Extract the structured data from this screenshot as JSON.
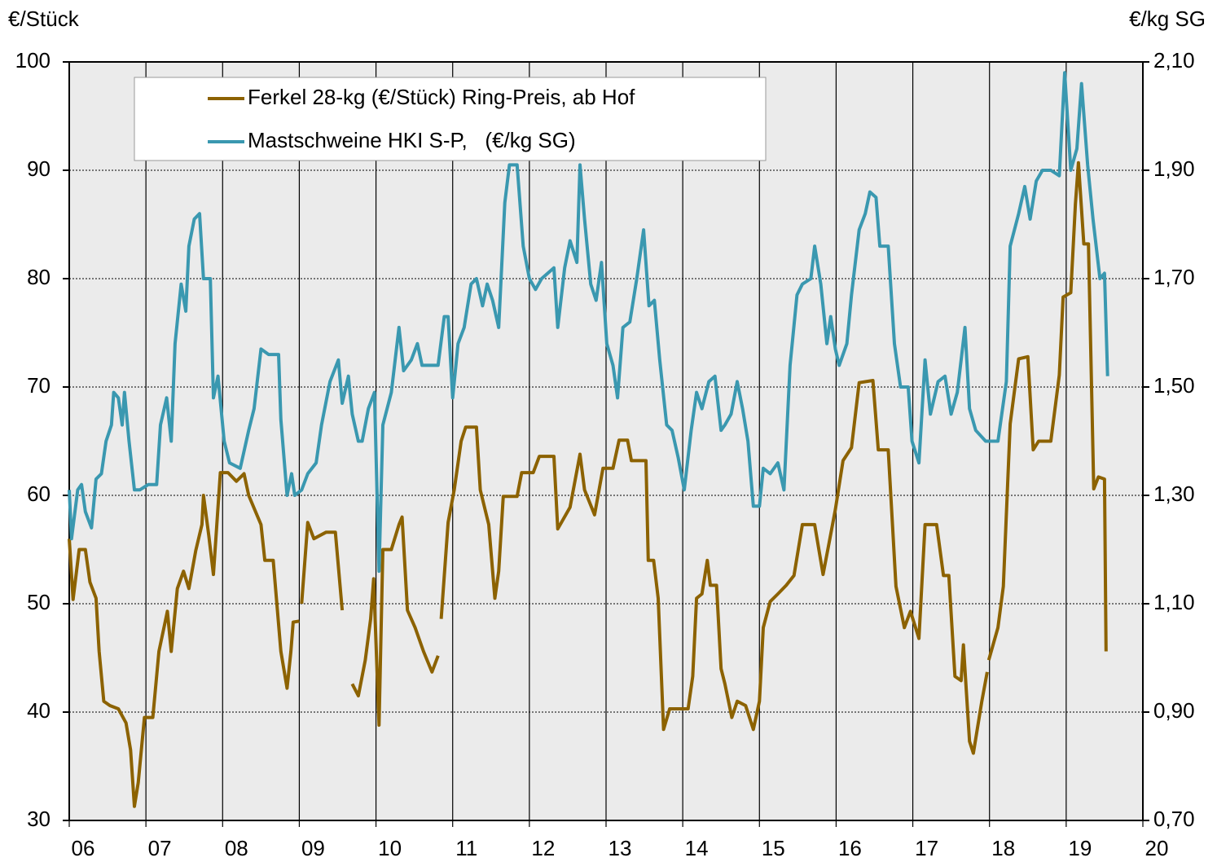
{
  "chart_data": {
    "type": "line",
    "y_label": "€/Stück",
    "y2_label": "€/kg SG",
    "grid": true,
    "legend": "top-left",
    "xlim": [
      2006,
      2020
    ],
    "xticks": [
      {
        "value": 2006,
        "label": "06"
      },
      {
        "value": 2007,
        "label": "07"
      },
      {
        "value": 2008,
        "label": "08"
      },
      {
        "value": 2009,
        "label": "09"
      },
      {
        "value": 2010,
        "label": "10"
      },
      {
        "value": 2011,
        "label": "11"
      },
      {
        "value": 2012,
        "label": "12"
      },
      {
        "value": 2013,
        "label": "13"
      },
      {
        "value": 2014,
        "label": "14"
      },
      {
        "value": 2015,
        "label": "15"
      },
      {
        "value": 2016,
        "label": "16"
      },
      {
        "value": 2017,
        "label": "17"
      },
      {
        "value": 2018,
        "label": "18"
      },
      {
        "value": 2019,
        "label": "19"
      },
      {
        "value": 2020,
        "label": "20"
      }
    ],
    "ylim": [
      30,
      100
    ],
    "yticks": [
      30,
      40,
      50,
      60,
      70,
      80,
      90,
      100
    ],
    "y2lim": [
      0.7,
      2.1
    ],
    "y2ticks": [
      {
        "value": 0.7,
        "label": "0,70"
      },
      {
        "value": 0.9,
        "label": "0,90"
      },
      {
        "value": 1.1,
        "label": "1,10"
      },
      {
        "value": 1.3,
        "label": "1,30"
      },
      {
        "value": 1.5,
        "label": "1,50"
      },
      {
        "value": 1.7,
        "label": "1,70"
      },
      {
        "value": 1.9,
        "label": "1,90"
      },
      {
        "value": 2.1,
        "label": "2,10"
      }
    ],
    "series": [
      {
        "name": "Ferkel 28-kg (€/Stück) Ring-Preis, ab Hof",
        "color": "#8c6200",
        "x": [
          2006.0,
          2006.05,
          2006.13,
          2006.21,
          2006.27,
          2006.35,
          2006.39,
          2006.45,
          2006.53,
          2006.64,
          2006.74,
          2006.8,
          2006.85,
          2006.9,
          2006.98,
          2007.09,
          2007.17,
          2007.28,
          2007.33,
          2007.41,
          2007.49,
          2007.56,
          2007.65,
          2007.73,
          2007.75,
          2007.82,
          2007.88,
          2007.97,
          2008.07,
          2008.18,
          2008.28,
          2008.34,
          2008.5,
          2008.55,
          2008.66,
          2008.76,
          2008.84,
          2008.89,
          2008.92,
          2009.0,
          2009.01,
          2009.03,
          2009.11,
          2009.19,
          2009.35,
          2009.47,
          2009.56,
          2009.6,
          2009.69,
          2009.77,
          2009.86,
          2009.93,
          2009.97,
          2010.04,
          2010.09,
          2010.2,
          2010.3,
          2010.34,
          2010.41,
          2010.51,
          2010.62,
          2010.73,
          2010.81,
          2010.83,
          2010.85,
          2010.94,
          2011.02,
          2011.11,
          2011.17,
          2011.31,
          2011.36,
          2011.47,
          2011.55,
          2011.6,
          2011.66,
          2011.84,
          2011.9,
          2012.05,
          2012.13,
          2012.32,
          2012.37,
          2012.53,
          2012.66,
          2012.72,
          2012.85,
          2012.96,
          2013.09,
          2013.17,
          2013.28,
          2013.33,
          2013.52,
          2013.55,
          2013.62,
          2013.68,
          2013.75,
          2013.83,
          2013.94,
          2014.07,
          2014.13,
          2014.18,
          2014.25,
          2014.32,
          2014.36,
          2014.44,
          2014.5,
          2014.55,
          2014.64,
          2014.71,
          2014.82,
          2014.92,
          2015.0,
          2015.05,
          2015.14,
          2015.24,
          2015.35,
          2015.45,
          2015.56,
          2015.72,
          2015.83,
          2015.91,
          2015.99,
          2016.09,
          2016.2,
          2016.3,
          2016.48,
          2016.55,
          2016.68,
          2016.78,
          2016.89,
          2016.97,
          2017.08,
          2017.16,
          2017.31,
          2017.4,
          2017.47,
          2017.55,
          2017.63,
          2017.66,
          2017.74,
          2017.79,
          2017.9,
          2017.97,
          2017.98,
          2017.99,
          2018.11,
          2018.18,
          2018.27,
          2018.38,
          2018.5,
          2018.57,
          2018.64,
          2018.8,
          2018.91,
          2018.96,
          2019.06,
          2019.12,
          2019.16,
          2019.23,
          2019.29,
          2019.36,
          2019.42,
          2019.5,
          2019.52
        ],
        "values": [
          56,
          50.4,
          55,
          55,
          52,
          50.5,
          45.6,
          41,
          40.6,
          40.3,
          39,
          36.5,
          31.3,
          33.5,
          39.5,
          39.5,
          45.6,
          49.3,
          45.6,
          51.4,
          53,
          51.4,
          54.9,
          57.3,
          60,
          56.3,
          52.7,
          62.1,
          62.1,
          61.3,
          62,
          60,
          57.3,
          54,
          54,
          45.6,
          42.2,
          45.6,
          48.3,
          48.4,
          null,
          50,
          57.5,
          56,
          56.6,
          56.6,
          49.4,
          null,
          42.6,
          41.5,
          44.8,
          48.6,
          52.3,
          38.8,
          55,
          55,
          57.3,
          58,
          49.4,
          47.8,
          45.6,
          43.7,
          45.2,
          null,
          48.6,
          57.5,
          60.5,
          65,
          66.3,
          66.3,
          60.5,
          57.3,
          50.5,
          53,
          59.9,
          59.9,
          62.1,
          62.1,
          63.6,
          63.6,
          56.9,
          58.9,
          63.8,
          60.5,
          58.2,
          62.5,
          62.5,
          65.1,
          65.1,
          63.2,
          63.2,
          54,
          54,
          50.5,
          38.4,
          40.3,
          40.3,
          40.3,
          43.3,
          50.5,
          50.9,
          54,
          51.7,
          51.7,
          44,
          42.6,
          39.5,
          41,
          40.6,
          38.4,
          41,
          47.8,
          50.2,
          50.9,
          51.7,
          52.6,
          57.3,
          57.3,
          52.7,
          55.7,
          58.7,
          63.2,
          64.4,
          70.4,
          70.6,
          64.2,
          64.2,
          51.6,
          47.8,
          49.3,
          46.8,
          57.3,
          57.3,
          52.6,
          52.6,
          43.3,
          42.9,
          46.2,
          37.3,
          36.2,
          41,
          43.7,
          null,
          44.8,
          47.8,
          51.6,
          66.6,
          72.6,
          72.8,
          64.2,
          65,
          65,
          71.1,
          78.3,
          78.7,
          86.9,
          90.7,
          83.2,
          83.2,
          60.6,
          61.7,
          61.5,
          45.6
        ]
      },
      {
        "name": "Mastschweine HKI S-P,   (€/kg SG)",
        "color": "#3a98b0",
        "axis": "y2",
        "x": [
          2006.0,
          2006.03,
          2006.11,
          2006.16,
          2006.21,
          2006.29,
          2006.35,
          2006.42,
          2006.48,
          2006.55,
          2006.58,
          2006.64,
          2006.69,
          2006.72,
          2006.78,
          2006.85,
          2006.92,
          2007.03,
          2007.14,
          2007.19,
          2007.27,
          2007.33,
          2007.38,
          2007.46,
          2007.52,
          2007.56,
          2007.63,
          2007.7,
          2007.75,
          2007.84,
          2007.88,
          2007.94,
          2008.02,
          2008.09,
          2008.23,
          2008.34,
          2008.41,
          2008.5,
          2008.6,
          2008.73,
          2008.76,
          2008.84,
          2008.9,
          2008.94,
          2009.03,
          2009.11,
          2009.22,
          2009.29,
          2009.4,
          2009.51,
          2009.56,
          2009.64,
          2009.69,
          2009.77,
          2009.82,
          2009.9,
          2009.98,
          2010.04,
          2010.09,
          2010.2,
          2010.3,
          2010.36,
          2010.46,
          2010.54,
          2010.6,
          2010.73,
          2010.81,
          2010.89,
          2010.94,
          2011.0,
          2011.07,
          2011.15,
          2011.24,
          2011.31,
          2011.39,
          2011.45,
          2011.52,
          2011.6,
          2011.68,
          2011.74,
          2011.84,
          2011.92,
          2012.0,
          2012.08,
          2012.16,
          2012.32,
          2012.37,
          2012.46,
          2012.53,
          2012.62,
          2012.66,
          2012.72,
          2012.8,
          2012.87,
          2012.94,
          2013.01,
          2013.09,
          2013.15,
          2013.22,
          2013.31,
          2013.4,
          2013.49,
          2013.56,
          2013.63,
          2013.7,
          2013.79,
          2013.86,
          2013.94,
          2014.02,
          2014.11,
          2014.18,
          2014.25,
          2014.34,
          2014.42,
          2014.5,
          2014.55,
          2014.63,
          2014.71,
          2014.78,
          2014.85,
          2014.92,
          2015.0,
          2015.05,
          2015.14,
          2015.24,
          2015.32,
          2015.4,
          2015.49,
          2015.56,
          2015.67,
          2015.72,
          2015.8,
          2015.88,
          2015.93,
          2015.99,
          2016.04,
          2016.14,
          2016.2,
          2016.3,
          2016.38,
          2016.44,
          2016.52,
          2016.57,
          2016.68,
          2016.76,
          2016.84,
          2016.94,
          2016.99,
          2017.08,
          2017.16,
          2017.23,
          2017.33,
          2017.42,
          2017.5,
          2017.58,
          2017.68,
          2017.74,
          2017.82,
          2017.95,
          2018.11,
          2018.22,
          2018.27,
          2018.38,
          2018.46,
          2018.53,
          2018.61,
          2018.69,
          2018.8,
          2018.91,
          2018.98,
          2019.06,
          2019.14,
          2019.2,
          2019.28,
          2019.35,
          2019.44,
          2019.5,
          2019.54
        ],
        "values": [
          1.31,
          1.22,
          1.31,
          1.32,
          1.27,
          1.24,
          1.33,
          1.34,
          1.4,
          1.43,
          1.49,
          1.48,
          1.43,
          1.49,
          1.4,
          1.31,
          1.31,
          1.32,
          1.32,
          1.43,
          1.48,
          1.4,
          1.58,
          1.69,
          1.64,
          1.76,
          1.81,
          1.82,
          1.7,
          1.7,
          1.48,
          1.52,
          1.4,
          1.36,
          1.35,
          1.42,
          1.46,
          1.57,
          1.56,
          1.56,
          1.44,
          1.3,
          1.34,
          1.3,
          1.31,
          1.34,
          1.36,
          1.43,
          1.51,
          1.55,
          1.47,
          1.52,
          1.45,
          1.4,
          1.4,
          1.46,
          1.49,
          1.16,
          1.43,
          1.49,
          1.61,
          1.53,
          1.55,
          1.58,
          1.54,
          1.54,
          1.54,
          1.63,
          1.63,
          1.48,
          1.58,
          1.61,
          1.69,
          1.7,
          1.65,
          1.69,
          1.66,
          1.61,
          1.84,
          1.91,
          1.91,
          1.76,
          1.7,
          1.68,
          1.7,
          1.72,
          1.61,
          1.72,
          1.77,
          1.73,
          1.91,
          1.81,
          1.69,
          1.66,
          1.73,
          1.58,
          1.54,
          1.48,
          1.61,
          1.62,
          1.7,
          1.79,
          1.65,
          1.66,
          1.55,
          1.43,
          1.42,
          1.37,
          1.31,
          1.42,
          1.49,
          1.46,
          1.51,
          1.52,
          1.42,
          1.43,
          1.45,
          1.51,
          1.46,
          1.4,
          1.28,
          1.28,
          1.35,
          1.34,
          1.36,
          1.31,
          1.54,
          1.67,
          1.69,
          1.7,
          1.76,
          1.69,
          1.58,
          1.63,
          1.57,
          1.54,
          1.58,
          1.67,
          1.79,
          1.82,
          1.86,
          1.85,
          1.76,
          1.76,
          1.58,
          1.5,
          1.5,
          1.4,
          1.36,
          1.55,
          1.45,
          1.51,
          1.52,
          1.45,
          1.49,
          1.61,
          1.46,
          1.42,
          1.4,
          1.4,
          1.51,
          1.76,
          1.82,
          1.87,
          1.81,
          1.88,
          1.9,
          1.9,
          1.89,
          2.08,
          1.9,
          1.94,
          2.06,
          1.91,
          1.81,
          1.7,
          1.71,
          1.52
        ]
      }
    ]
  }
}
